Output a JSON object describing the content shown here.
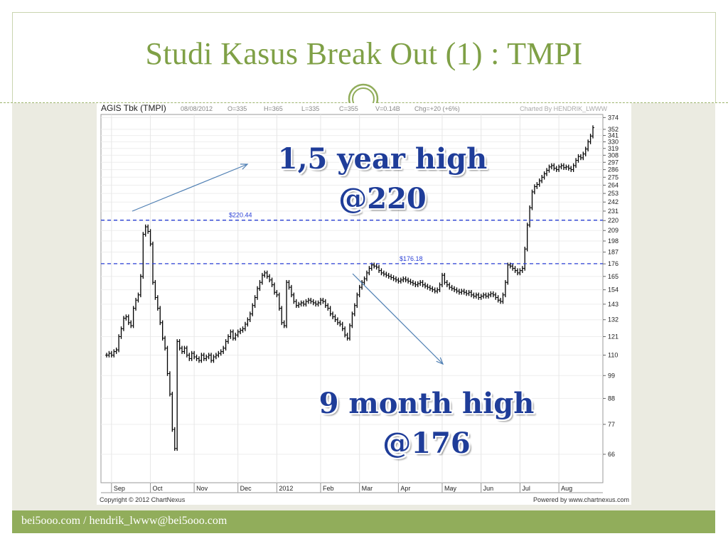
{
  "slide": {
    "title": "Studi Kasus Break Out (1) : TMPI",
    "footer": "bei5ooo.com / hendrik_lwww@bei5ooo.com"
  },
  "annotations": {
    "a_line1": "1,5 year high",
    "a_line2": "@220",
    "b_line1": "9 month high",
    "b_line2": "@176"
  },
  "colors": {
    "accent": "#7fa046",
    "footer": "#91ad5b",
    "annotation": "#1f3d99",
    "ref_line": "#2a3fd6",
    "arrow": "#4f7fb3"
  },
  "chart_data": {
    "type": "candlestick",
    "header": {
      "name": "AGIS Tbk (TMPI)",
      "date": "08/08/2012",
      "open": "O=335",
      "high": "H=365",
      "low": "L=335",
      "close": "C=355",
      "volume": "V=0.14B",
      "change": "Chg=+20 (+6%)",
      "charted_by": "Charted By HENDRIK_LWWW"
    },
    "copyright": "Copyright © 2012 ChartNexus",
    "powered": "Powered by www.chartnexus.com",
    "y_ticks": [
      374,
      352,
      341,
      330,
      319,
      308,
      297,
      286,
      275,
      264,
      253,
      242,
      231,
      220,
      209,
      198,
      187,
      176,
      165,
      154,
      143,
      132,
      121,
      110,
      99,
      88,
      77,
      66
    ],
    "y_scale": "log",
    "ylim": [
      57,
      380
    ],
    "x_labels": [
      "Sep",
      "Oct",
      "Nov",
      "Dec",
      "2012",
      "Feb",
      "Mar",
      "Apr",
      "May",
      "Jun",
      "Jul",
      "Aug"
    ],
    "ref_lines": [
      {
        "label": "$220.44",
        "value": 220.44
      },
      {
        "label": "$176.18",
        "value": 176.18
      }
    ],
    "closes": [
      110,
      111,
      110,
      112,
      113,
      121,
      126,
      133,
      134,
      130,
      128,
      140,
      146,
      150,
      165,
      205,
      213,
      208,
      195,
      160,
      148,
      140,
      130,
      120,
      114,
      100,
      90,
      75,
      68,
      118,
      114,
      112,
      114,
      110,
      108,
      111,
      109,
      108,
      107,
      110,
      108,
      109,
      110,
      107,
      109,
      110,
      111,
      112,
      114,
      118,
      121,
      124,
      120,
      122,
      124,
      125,
      126,
      129,
      132,
      136,
      142,
      148,
      155,
      160,
      166,
      168,
      165,
      162,
      158,
      152,
      150,
      140,
      130,
      128,
      160,
      156,
      150,
      145,
      142,
      143,
      144,
      143,
      145,
      146,
      145,
      144,
      143,
      144,
      146,
      145,
      142,
      140,
      136,
      134,
      132,
      130,
      129,
      126,
      122,
      120,
      128,
      136,
      142,
      150,
      156,
      160,
      163,
      168,
      172,
      175,
      174,
      173,
      170,
      168,
      167,
      166,
      165,
      164,
      163,
      162,
      161,
      162,
      163,
      162,
      161,
      160,
      159,
      158,
      159,
      160,
      158,
      157,
      156,
      155,
      154,
      153,
      154,
      158,
      166,
      160,
      158,
      156,
      155,
      154,
      153,
      152,
      153,
      152,
      151,
      152,
      150,
      149,
      150,
      148,
      149,
      150,
      149,
      150,
      151,
      150,
      148,
      146,
      145,
      150,
      160,
      175,
      174,
      172,
      170,
      168,
      170,
      172,
      190,
      215,
      235,
      255,
      262,
      265,
      270,
      275,
      280,
      285,
      290,
      292,
      288,
      286,
      290,
      292,
      289,
      290,
      288,
      286,
      292,
      300,
      306,
      304,
      310,
      318,
      330,
      340,
      355
    ]
  }
}
